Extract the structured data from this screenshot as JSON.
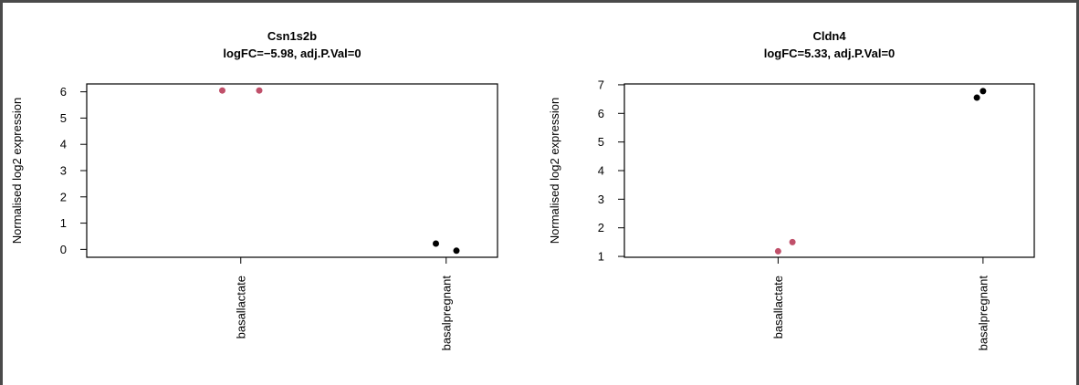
{
  "chart_data": [
    {
      "type": "scatter",
      "title": "Csn1s2b",
      "subtitle": "logFC=−5.98, adj.P.Val=0",
      "xlabel": "",
      "ylabel": "Normalised log2 expression",
      "categories": [
        "basallactate",
        "basalpregnant"
      ],
      "ylim": [
        -0.3,
        6.3
      ],
      "yticks": [
        0,
        1,
        2,
        3,
        4,
        5,
        6
      ],
      "grid": false,
      "series": [
        {
          "name": "basallactate",
          "color": "#c0506a",
          "points": [
            {
              "category": "basallactate",
              "offset": -0.09,
              "y": 6.05
            },
            {
              "category": "basallactate",
              "offset": 0.09,
              "y": 6.05
            }
          ]
        },
        {
          "name": "basalpregnant",
          "color": "#000000",
          "points": [
            {
              "category": "basalpregnant",
              "offset": -0.05,
              "y": 0.22
            },
            {
              "category": "basalpregnant",
              "offset": 0.05,
              "y": -0.05
            }
          ]
        }
      ]
    },
    {
      "type": "scatter",
      "title": "Cldn4",
      "subtitle": "logFC=5.33, adj.P.Val=0",
      "xlabel": "",
      "ylabel": "Normalised log2 expression",
      "categories": [
        "basallactate",
        "basalpregnant"
      ],
      "ylim": [
        0.97,
        7.03
      ],
      "yticks": [
        1,
        2,
        3,
        4,
        5,
        6,
        7
      ],
      "grid": false,
      "series": [
        {
          "name": "basallactate",
          "color": "#c0506a",
          "points": [
            {
              "category": "basallactate",
              "offset": 0.0,
              "y": 1.18
            },
            {
              "category": "basallactate",
              "offset": 0.07,
              "y": 1.5
            }
          ]
        },
        {
          "name": "basalpregnant",
          "color": "#000000",
          "points": [
            {
              "category": "basalpregnant",
              "offset": -0.03,
              "y": 6.55
            },
            {
              "category": "basalpregnant",
              "offset": 0.0,
              "y": 6.78
            }
          ]
        }
      ]
    }
  ]
}
